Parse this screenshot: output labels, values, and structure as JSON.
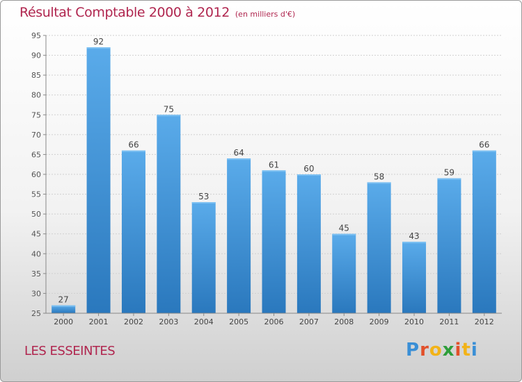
{
  "header": {
    "title": "Résultat Comptable 2000 à 2012",
    "unit": "(en milliers d'€)"
  },
  "footer": {
    "commune": "LES ESSEINTES"
  },
  "brand": {
    "letters": [
      "P",
      "r",
      "o",
      "x",
      "i",
      "t",
      "i"
    ],
    "colors": [
      "#3a8fd6",
      "#e2502a",
      "#f2b318",
      "#2e9e3a",
      "#e2502a",
      "#f2b318",
      "#3a8fd6"
    ]
  },
  "chart_data": {
    "type": "bar",
    "title": "Résultat Comptable 2000 à 2012",
    "subtitle": "(en milliers d'€)",
    "xlabel": "",
    "ylabel": "",
    "categories": [
      "2000",
      "2001",
      "2002",
      "2003",
      "2004",
      "2005",
      "2006",
      "2007",
      "2008",
      "2009",
      "2010",
      "2011",
      "2012"
    ],
    "values": [
      27,
      92,
      66,
      75,
      53,
      64,
      61,
      60,
      45,
      58,
      43,
      59,
      66
    ],
    "ylim": [
      25,
      95
    ],
    "yticks": [
      25,
      30,
      35,
      40,
      45,
      50,
      55,
      60,
      65,
      70,
      75,
      80,
      85,
      90,
      95
    ],
    "grid": true,
    "bar_color": "#4a9ce0"
  }
}
